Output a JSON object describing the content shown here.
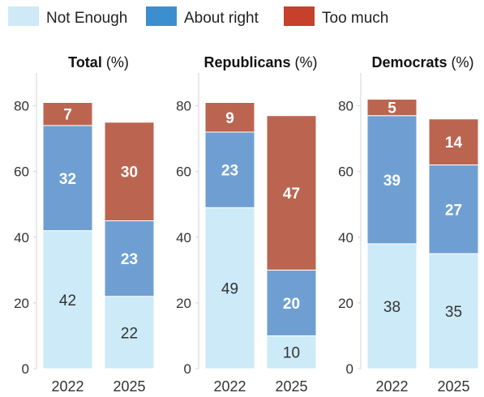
{
  "chart_data": {
    "type": "bar",
    "stacked": true,
    "legend": {
      "placement": "top-left",
      "entries": [
        {
          "name": "Not Enough",
          "color": "#cfe9f7"
        },
        {
          "name": "About right",
          "color": "#3c8fcf"
        },
        {
          "name": "Too much",
          "color": "#c7402c"
        }
      ]
    },
    "categories": [
      "2022",
      "2025"
    ],
    "ylim": [
      0,
      90
    ],
    "yticks": [
      0,
      20,
      40,
      60,
      80
    ],
    "grid": false,
    "panels": [
      {
        "title": "Total",
        "title_suffix": " (%)",
        "series": [
          {
            "name": "Not Enough",
            "values": [
              42,
              22
            ]
          },
          {
            "name": "About right",
            "values": [
              32,
              23
            ]
          },
          {
            "name": "Too much",
            "values": [
              7,
              30
            ]
          }
        ]
      },
      {
        "title": "Republicans",
        "title_suffix": " (%)",
        "series": [
          {
            "name": "Not Enough",
            "values": [
              49,
              10
            ]
          },
          {
            "name": "About right",
            "values": [
              23,
              20
            ]
          },
          {
            "name": "Too much",
            "values": [
              9,
              47
            ]
          }
        ]
      },
      {
        "title": "Democrats",
        "title_suffix": " (%)",
        "series": [
          {
            "name": "Not Enough",
            "values": [
              38,
              35
            ]
          },
          {
            "name": "About right",
            "values": [
              39,
              27
            ]
          },
          {
            "name": "Too much",
            "values": [
              5,
              14
            ]
          }
        ]
      }
    ]
  },
  "colors": {
    "not_enough_bar": "#cdeaf8",
    "about_right_bar": "#6f9fd2",
    "too_much_bar": "#bb6551"
  }
}
